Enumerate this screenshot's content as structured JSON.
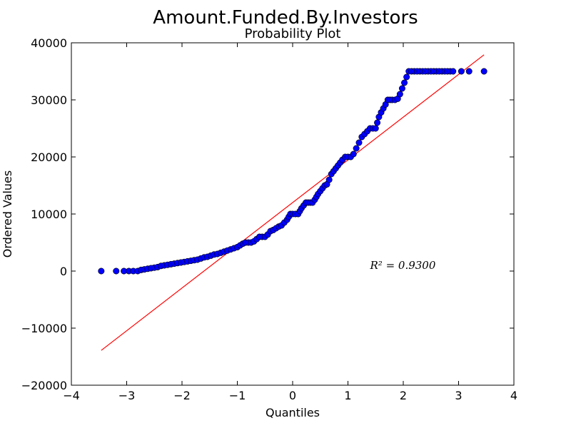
{
  "chart_data": {
    "type": "scatter",
    "title": "Amount.Funded.By.Investors",
    "subtitle": "Probability Plot",
    "xlabel": "Quantiles",
    "ylabel": "Ordered Values",
    "xlim": [
      -4,
      4
    ],
    "ylim": [
      -20000,
      40000
    ],
    "xticks": [
      -4,
      -3,
      -2,
      -1,
      0,
      1,
      2,
      3,
      4
    ],
    "yticks": [
      -20000,
      -10000,
      0,
      10000,
      20000,
      30000,
      40000
    ],
    "xtick_labels": [
      "−4",
      "−3",
      "−2",
      "−1",
      "0",
      "1",
      "2",
      "3",
      "4"
    ],
    "ytick_labels": [
      "−20000",
      "−10000",
      "0",
      "10000",
      "20000",
      "30000",
      "40000"
    ],
    "grid": false,
    "annotation": "R² = 0.9300",
    "annotation_pos": {
      "x": 1.4,
      "y": 0
    },
    "fit_line": {
      "x": [
        -3.46,
        3.46
      ],
      "y": [
        -13900,
        37900
      ],
      "color": "#ff0000"
    },
    "marker_color": "#0000ff",
    "marker_edge_color": "#000000",
    "series": [
      {
        "points": [
          [
            -3.46,
            0
          ],
          [
            -3.19,
            0
          ],
          [
            -3.05,
            0
          ],
          [
            -2.96,
            0
          ],
          [
            -2.88,
            0
          ],
          [
            -2.8,
            0
          ],
          [
            -2.74,
            200
          ],
          [
            -2.68,
            300
          ],
          [
            -2.62,
            400
          ],
          [
            -2.56,
            500
          ],
          [
            -2.5,
            600
          ],
          [
            -2.44,
            700
          ],
          [
            -2.38,
            900
          ],
          [
            -2.32,
            1000
          ],
          [
            -2.26,
            1100
          ],
          [
            -2.2,
            1200
          ],
          [
            -2.14,
            1300
          ],
          [
            -2.08,
            1400
          ],
          [
            -2.02,
            1500
          ],
          [
            -1.96,
            1600
          ],
          [
            -1.9,
            1700
          ],
          [
            -1.84,
            1800
          ],
          [
            -1.78,
            1900
          ],
          [
            -1.72,
            2000
          ],
          [
            -1.66,
            2200
          ],
          [
            -1.6,
            2400
          ],
          [
            -1.54,
            2500
          ],
          [
            -1.48,
            2700
          ],
          [
            -1.42,
            2900
          ],
          [
            -1.36,
            3000
          ],
          [
            -1.3,
            3200
          ],
          [
            -1.24,
            3400
          ],
          [
            -1.18,
            3600
          ],
          [
            -1.12,
            3800
          ],
          [
            -1.06,
            4000
          ],
          [
            -1.0,
            4200
          ],
          [
            -0.95,
            4500
          ],
          [
            -0.9,
            4800
          ],
          [
            -0.85,
            5000
          ],
          [
            -0.8,
            5000
          ],
          [
            -0.75,
            5000
          ],
          [
            -0.7,
            5200
          ],
          [
            -0.65,
            5600
          ],
          [
            -0.6,
            6000
          ],
          [
            -0.55,
            6000
          ],
          [
            -0.5,
            6000
          ],
          [
            -0.45,
            6400
          ],
          [
            -0.4,
            7000
          ],
          [
            -0.35,
            7200
          ],
          [
            -0.3,
            7500
          ],
          [
            -0.25,
            7800
          ],
          [
            -0.2,
            8000
          ],
          [
            -0.15,
            8500
          ],
          [
            -0.1,
            9000
          ],
          [
            -0.07,
            9500
          ],
          [
            -0.04,
            10000
          ],
          [
            0.0,
            10000
          ],
          [
            0.05,
            10000
          ],
          [
            0.1,
            10000
          ],
          [
            0.13,
            10500
          ],
          [
            0.16,
            11000
          ],
          [
            0.2,
            11500
          ],
          [
            0.24,
            12000
          ],
          [
            0.28,
            12000
          ],
          [
            0.32,
            12000
          ],
          [
            0.36,
            12000
          ],
          [
            0.4,
            12500
          ],
          [
            0.43,
            13000
          ],
          [
            0.46,
            13500
          ],
          [
            0.5,
            14000
          ],
          [
            0.54,
            14500
          ],
          [
            0.58,
            15000
          ],
          [
            0.62,
            15200
          ],
          [
            0.66,
            16000
          ],
          [
            0.7,
            17000
          ],
          [
            0.74,
            17500
          ],
          [
            0.78,
            18000
          ],
          [
            0.82,
            18500
          ],
          [
            0.86,
            19000
          ],
          [
            0.9,
            19500
          ],
          [
            0.95,
            20000
          ],
          [
            1.0,
            20000
          ],
          [
            1.05,
            20000
          ],
          [
            1.1,
            20500
          ],
          [
            1.15,
            21500
          ],
          [
            1.2,
            22500
          ],
          [
            1.25,
            23500
          ],
          [
            1.3,
            24000
          ],
          [
            1.35,
            24500
          ],
          [
            1.4,
            25000
          ],
          [
            1.45,
            25000
          ],
          [
            1.5,
            25000
          ],
          [
            1.53,
            26000
          ],
          [
            1.56,
            27000
          ],
          [
            1.6,
            27800
          ],
          [
            1.64,
            28500
          ],
          [
            1.68,
            29200
          ],
          [
            1.72,
            30000
          ],
          [
            1.76,
            30000
          ],
          [
            1.8,
            30000
          ],
          [
            1.85,
            30000
          ],
          [
            1.9,
            30200
          ],
          [
            1.94,
            31000
          ],
          [
            1.98,
            32000
          ],
          [
            2.02,
            33000
          ],
          [
            2.06,
            34000
          ],
          [
            2.1,
            35000
          ],
          [
            2.15,
            35000
          ],
          [
            2.2,
            35000
          ],
          [
            2.25,
            35000
          ],
          [
            2.3,
            35000
          ],
          [
            2.35,
            35000
          ],
          [
            2.4,
            35000
          ],
          [
            2.45,
            35000
          ],
          [
            2.5,
            35000
          ],
          [
            2.55,
            35000
          ],
          [
            2.6,
            35000
          ],
          [
            2.65,
            35000
          ],
          [
            2.7,
            35000
          ],
          [
            2.75,
            35000
          ],
          [
            2.8,
            35000
          ],
          [
            2.85,
            35000
          ],
          [
            2.9,
            35000
          ],
          [
            3.05,
            35000
          ],
          [
            3.19,
            35000
          ],
          [
            3.46,
            35000
          ]
        ]
      }
    ]
  }
}
